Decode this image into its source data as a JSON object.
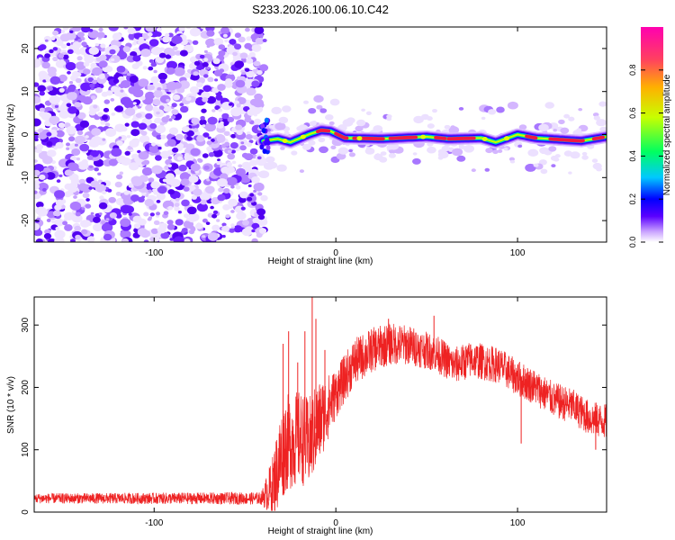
{
  "figure": {
    "title": "S233.2026.100.06.10.C42"
  },
  "colors": {
    "snr_line": "#ee2222",
    "axis": "#000000",
    "colormap": [
      "#ffffff",
      "#b070ff",
      "#5a00ff",
      "#0000ff",
      "#00c8ff",
      "#00ff60",
      "#c8ff00",
      "#ffb000",
      "#ff4060",
      "#ff00b0"
    ]
  },
  "chart_data": [
    {
      "type": "heatmap",
      "name": "spectrogram",
      "xlabel": "Height of straight line (km)",
      "ylabel": "Frequency (Hz)",
      "xlim": [
        -166,
        149
      ],
      "ylim": [
        -25,
        25
      ],
      "xticks": [
        -100,
        0,
        100
      ],
      "xtick_labels": [
        "-100",
        "0",
        "100"
      ],
      "yticks": [
        -20,
        -10,
        0,
        10,
        20
      ],
      "ytick_labels": [
        "-20",
        "-10",
        "0",
        "10",
        "20"
      ],
      "noise_region_end_km": -41,
      "ridge_points": [
        {
          "x": -40,
          "y": -1.5
        },
        {
          "x": -32,
          "y": -1.0
        },
        {
          "x": -25,
          "y": -1.8
        },
        {
          "x": -15,
          "y": 0.0
        },
        {
          "x": -8,
          "y": 1.0
        },
        {
          "x": -3,
          "y": 0.8
        },
        {
          "x": 5,
          "y": -0.8
        },
        {
          "x": 25,
          "y": -1.0
        },
        {
          "x": 50,
          "y": -0.5
        },
        {
          "x": 62,
          "y": -1.0
        },
        {
          "x": 80,
          "y": -0.8
        },
        {
          "x": 88,
          "y": -1.8
        },
        {
          "x": 100,
          "y": 0.0
        },
        {
          "x": 110,
          "y": -0.8
        },
        {
          "x": 135,
          "y": -1.5
        },
        {
          "x": 149,
          "y": -0.5
        }
      ],
      "colorbar": {
        "label": "Normalized spectral amplitude",
        "range": [
          0,
          1
        ],
        "ticks": [
          0.0,
          0.2,
          0.4,
          0.6,
          0.8
        ],
        "tick_labels": [
          "0.0",
          "0.2",
          "0.4",
          "0.6",
          "0.8"
        ]
      }
    },
    {
      "type": "line",
      "name": "snr",
      "xlabel": "Height of straight line (km)",
      "ylabel": "SNR (10 * v/v)",
      "xlim": [
        -166,
        149
      ],
      "ylim": [
        0,
        345
      ],
      "xticks": [
        -100,
        0,
        100
      ],
      "xtick_labels": [
        "-100",
        "0",
        "100"
      ],
      "yticks": [
        0,
        100,
        200,
        300
      ],
      "ytick_labels": [
        "0",
        "100",
        "200",
        "300"
      ],
      "trend": [
        {
          "x": -166,
          "y": 22
        },
        {
          "x": -120,
          "y": 22
        },
        {
          "x": -41,
          "y": 22
        },
        {
          "x": -35,
          "y": 40
        },
        {
          "x": -28,
          "y": 110
        },
        {
          "x": -20,
          "y": 120
        },
        {
          "x": -15,
          "y": 110
        },
        {
          "x": -10,
          "y": 140
        },
        {
          "x": 0,
          "y": 190
        },
        {
          "x": 10,
          "y": 240
        },
        {
          "x": 20,
          "y": 260
        },
        {
          "x": 30,
          "y": 270
        },
        {
          "x": 40,
          "y": 268
        },
        {
          "x": 55,
          "y": 255
        },
        {
          "x": 65,
          "y": 235
        },
        {
          "x": 75,
          "y": 245
        },
        {
          "x": 90,
          "y": 235
        },
        {
          "x": 100,
          "y": 215
        },
        {
          "x": 110,
          "y": 200
        },
        {
          "x": 120,
          "y": 180
        },
        {
          "x": 130,
          "y": 170
        },
        {
          "x": 140,
          "y": 150
        },
        {
          "x": 149,
          "y": 145
        }
      ],
      "noise_amplitude": [
        {
          "x": -166,
          "y": 8
        },
        {
          "x": -41,
          "y": 10
        },
        {
          "x": -30,
          "y": 80
        },
        {
          "x": -10,
          "y": 70
        },
        {
          "x": 0,
          "y": 40
        },
        {
          "x": 50,
          "y": 30
        },
        {
          "x": 149,
          "y": 28
        }
      ],
      "spikes": [
        {
          "x": -29,
          "y": 270
        },
        {
          "x": -26,
          "y": 290
        },
        {
          "x": -21,
          "y": 240
        },
        {
          "x": -17,
          "y": 290
        },
        {
          "x": -13,
          "y": 345
        },
        {
          "x": -11,
          "y": 310
        },
        {
          "x": -6,
          "y": 260
        },
        {
          "x": 29,
          "y": 310
        },
        {
          "x": 54,
          "y": 315
        },
        {
          "x": 102,
          "y": 110
        },
        {
          "x": 143,
          "y": 100
        }
      ]
    }
  ]
}
